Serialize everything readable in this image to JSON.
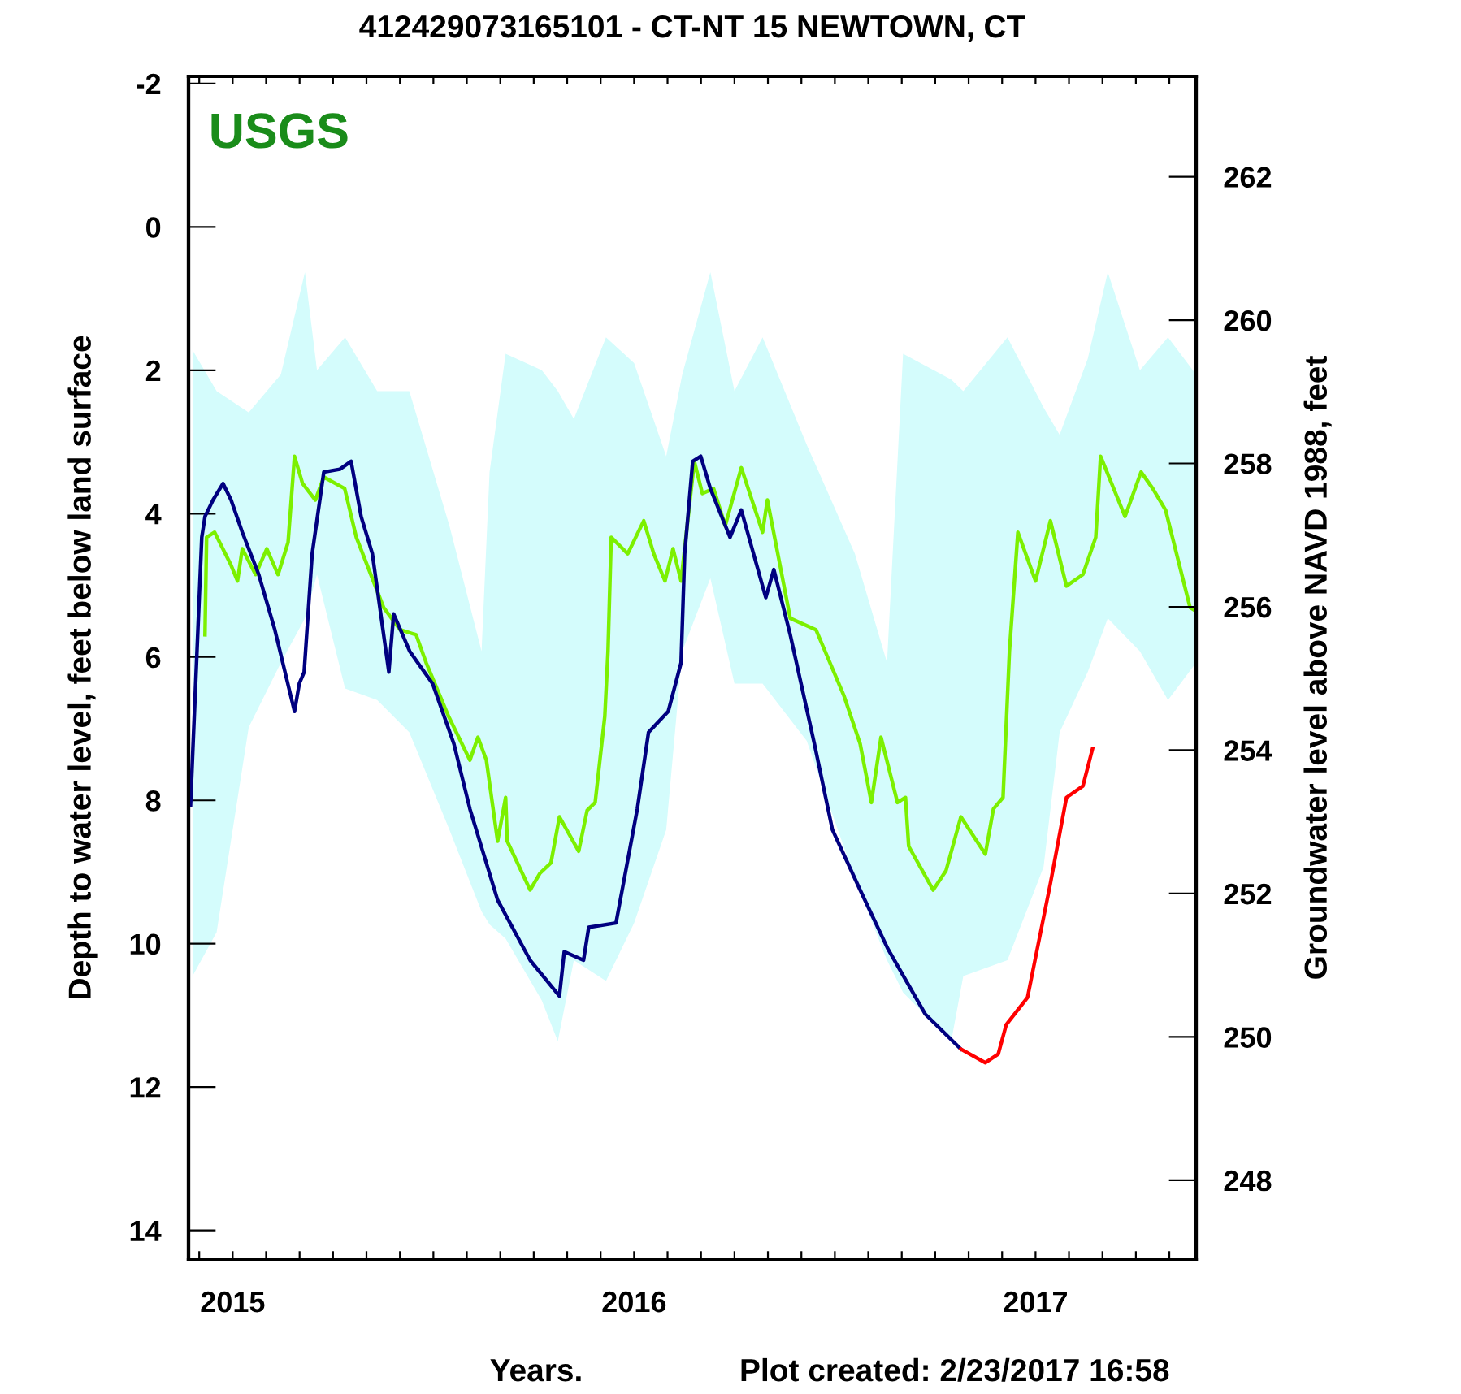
{
  "chart_data": {
    "type": "line",
    "title": "412429073165101 - CT-NT 15 NEWTOWN, CT",
    "xlabel": "Years.",
    "ylabel": "Depth to water level, feet below land surface",
    "y2label": "Groundwater level above NAVD 1988, feet",
    "annotations": [
      "USGS",
      "Plot created: 2/23/2017 16:58"
    ],
    "xlim": [
      2014.89,
      2017.4
    ],
    "ylim": [
      14.4,
      -2.1
    ],
    "y2lim": [
      246.9,
      263.4
    ],
    "xticks": [
      {
        "value": 2014.9167,
        "label": null
      },
      2015,
      {
        "value": 2015.0833,
        "label": null
      },
      {
        "value": 2015.1667,
        "label": null
      },
      {
        "value": 2015.25,
        "label": null
      },
      {
        "value": 2015.3333,
        "label": null
      },
      {
        "value": 2015.4167,
        "label": null
      },
      {
        "value": 2015.5,
        "label": null
      },
      {
        "value": 2015.5833,
        "label": null
      },
      {
        "value": 2015.6667,
        "label": null
      },
      {
        "value": 2015.75,
        "label": null
      },
      {
        "value": 2015.8333,
        "label": null
      },
      {
        "value": 2015.9167,
        "label": null
      },
      2016,
      {
        "value": 2016.0833,
        "label": null
      },
      {
        "value": 2016.1667,
        "label": null
      },
      {
        "value": 2016.25,
        "label": null
      },
      {
        "value": 2016.3333,
        "label": null
      },
      {
        "value": 2016.4167,
        "label": null
      },
      {
        "value": 2016.5,
        "label": null
      },
      {
        "value": 2016.5833,
        "label": null
      },
      {
        "value": 2016.6667,
        "label": null
      },
      {
        "value": 2016.75,
        "label": null
      },
      {
        "value": 2016.8333,
        "label": null
      },
      {
        "value": 2016.9167,
        "label": null
      },
      2017,
      {
        "value": 2017.0833,
        "label": null
      },
      {
        "value": 2017.1667,
        "label": null
      },
      {
        "value": 2017.25,
        "label": null
      },
      {
        "value": 2017.3333,
        "label": null
      }
    ],
    "yticks": [
      -2,
      0,
      2,
      4,
      6,
      8,
      10,
      12,
      14
    ],
    "y2ticks": [
      248,
      250,
      252,
      254,
      256,
      258,
      260,
      262
    ],
    "grid": false,
    "marker": "none",
    "line_style": "solid",
    "series": [
      {
        "color": "#d4fcfc",
        "x": [
          2014.9,
          2014.96,
          2015.04,
          2015.12,
          2015.18,
          2015.21,
          2015.28,
          2015.36,
          2015.44,
          2015.54,
          2015.62,
          2015.64,
          2015.68,
          2015.77,
          2015.81,
          2015.85,
          2015.93,
          2016.0,
          2016.08,
          2016.12,
          2016.19,
          2016.25,
          2016.32,
          2016.43,
          2016.55,
          2016.63,
          2016.67,
          2016.79,
          2016.82,
          2016.93,
          2017.02,
          2017.06,
          2017.13,
          2017.18,
          2017.26,
          2017.33,
          2017.4
        ],
        "values": [
          null,
          null,
          null,
          null,
          null,
          null,
          null,
          null,
          null,
          null,
          null,
          null,
          null,
          null,
          null,
          null,
          null,
          null,
          null,
          null,
          null,
          null,
          null,
          null,
          null,
          null,
          null,
          null,
          null,
          null,
          null,
          null,
          null,
          null,
          null,
          null,
          null
        ],
        "upper": [
          1.72,
          2.29,
          2.59,
          2.06,
          0.63,
          2.0,
          1.54,
          2.29,
          2.29,
          4.17,
          5.92,
          3.42,
          1.77,
          2.0,
          2.29,
          2.68,
          1.54,
          1.9,
          3.2,
          2.06,
          0.63,
          2.29,
          1.54,
          3.04,
          4.56,
          6.08,
          1.77,
          2.13,
          2.29,
          1.54,
          2.52,
          2.9,
          1.84,
          0.63,
          2.0,
          1.54,
          2.06
        ],
        "lower": [
          10.45,
          9.84,
          6.98,
          6.08,
          5.46,
          4.85,
          6.44,
          6.6,
          7.05,
          8.41,
          9.55,
          9.73,
          9.93,
          10.79,
          11.36,
          10.23,
          10.52,
          9.71,
          8.41,
          5.92,
          4.9,
          6.37,
          6.37,
          7.17,
          9.09,
          10.23,
          10.68,
          11.36,
          10.45,
          10.23,
          8.93,
          7.05,
          6.21,
          5.46,
          5.92,
          6.6,
          6.08
        ]
      },
      {
        "color": "#7cf000",
        "x": [
          2014.931,
          2014.935,
          2014.955,
          2014.996,
          2015.012,
          2015.024,
          2015.057,
          2015.085,
          2015.113,
          2015.138,
          2015.154,
          2015.174,
          2015.206,
          2015.227,
          2015.279,
          2015.308,
          2015.376,
          2015.417,
          2015.457,
          2015.482,
          2015.538,
          2015.591,
          2015.611,
          2015.632,
          2015.66,
          2015.68,
          2015.684,
          2015.741,
          2015.765,
          2015.793,
          2015.814,
          2015.862,
          2015.883,
          2015.903,
          2015.927,
          2015.935,
          2015.943,
          2015.984,
          2016.024,
          2016.049,
          2016.077,
          2016.097,
          2016.117,
          2016.15,
          2016.17,
          2016.198,
          2016.227,
          2016.267,
          2016.32,
          2016.332,
          2016.389,
          2016.453,
          2016.522,
          2016.563,
          2016.591,
          2016.615,
          2016.656,
          2016.676,
          2016.684,
          2016.745,
          2016.777,
          2016.814,
          2016.875,
          2016.895,
          2016.919,
          2016.935,
          2016.956,
          2017.0,
          2017.037,
          2017.077,
          2017.118,
          2017.15,
          2017.162,
          2017.223,
          2017.263,
          2017.292,
          2017.324,
          2017.385,
          2017.397
        ],
        "values": [
          5.69,
          4.33,
          4.26,
          4.72,
          4.94,
          4.49,
          4.85,
          4.49,
          4.85,
          4.4,
          3.2,
          3.58,
          3.81,
          3.49,
          3.65,
          4.33,
          5.31,
          5.62,
          5.69,
          6.08,
          6.83,
          7.44,
          7.12,
          7.44,
          8.57,
          7.96,
          8.57,
          9.25,
          9.02,
          8.87,
          8.23,
          8.71,
          8.14,
          8.03,
          6.83,
          5.92,
          4.33,
          4.56,
          4.1,
          4.56,
          4.94,
          4.49,
          4.94,
          3.27,
          3.72,
          3.65,
          4.17,
          3.36,
          4.26,
          3.81,
          5.46,
          5.62,
          6.53,
          7.21,
          8.03,
          7.12,
          8.03,
          7.96,
          8.64,
          9.25,
          8.98,
          8.23,
          8.75,
          8.12,
          7.96,
          5.92,
          4.26,
          4.94,
          4.1,
          5.01,
          4.85,
          4.33,
          3.2,
          4.04,
          3.42,
          3.65,
          3.95,
          5.31,
          5.35
        ]
      },
      {
        "color": "#000080",
        "x": [
          2014.895,
          2014.923,
          2014.931,
          2014.951,
          2014.976,
          2014.996,
          2015.024,
          2015.065,
          2015.105,
          2015.154,
          2015.166,
          2015.178,
          2015.198,
          2015.227,
          2015.267,
          2015.295,
          2015.32,
          2015.348,
          2015.389,
          2015.401,
          2015.441,
          2015.498,
          2015.551,
          2015.591,
          2015.66,
          2015.741,
          2015.814,
          2015.826,
          2015.874,
          2015.887,
          2015.955,
          2016.008,
          2016.036,
          2016.085,
          2016.117,
          2016.126,
          2016.146,
          2016.166,
          2016.19,
          2016.239,
          2016.267,
          2016.328,
          2016.348,
          2016.389,
          2016.449,
          2016.494,
          2016.563,
          2016.632,
          2016.725,
          2016.814
        ],
        "values": [
          8.07,
          4.33,
          4.04,
          3.81,
          3.58,
          3.81,
          4.26,
          4.85,
          5.62,
          6.76,
          6.37,
          6.21,
          4.56,
          3.42,
          3.38,
          3.27,
          4.04,
          4.56,
          6.21,
          5.4,
          5.92,
          6.37,
          7.21,
          8.12,
          9.39,
          10.23,
          10.73,
          10.11,
          10.23,
          9.77,
          9.71,
          8.12,
          7.05,
          6.76,
          6.08,
          4.56,
          3.27,
          3.2,
          3.65,
          4.33,
          3.95,
          5.17,
          4.78,
          5.69,
          7.21,
          8.41,
          9.25,
          10.07,
          10.98,
          11.47
        ]
      },
      {
        "color": "#ff0000",
        "x": [
          2016.814,
          2016.875,
          2016.907,
          2016.927,
          2016.98,
          2017.037,
          2017.077,
          2017.118,
          2017.142
        ],
        "values": [
          11.47,
          11.66,
          11.54,
          11.13,
          10.75,
          9.16,
          7.96,
          7.8,
          7.28
        ]
      }
    ]
  }
}
